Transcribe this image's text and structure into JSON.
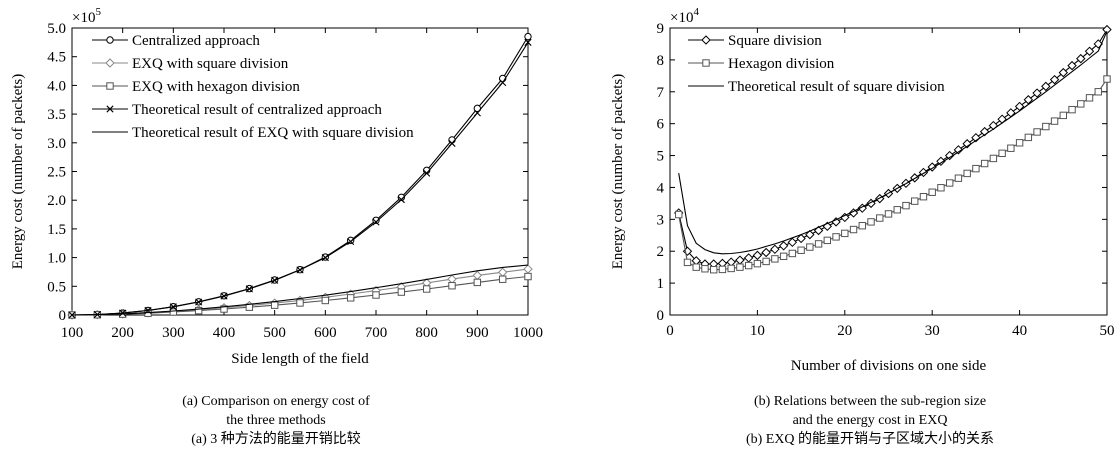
{
  "chart_data": [
    {
      "type": "line",
      "xlabel": "Side length of the field",
      "ylabel": "Energy cost (number of packets)",
      "multiplier": "×10",
      "multiplier_exp": "5",
      "xlim": [
        100,
        1000
      ],
      "ylim": [
        0,
        500000
      ],
      "xticks": [
        100,
        200,
        300,
        400,
        500,
        600,
        700,
        800,
        900,
        1000
      ],
      "yticks": [
        0,
        50000,
        100000,
        150000,
        200000,
        250000,
        300000,
        350000,
        400000,
        450000,
        500000
      ],
      "xtick_labels": [
        "100",
        "200",
        "300",
        "400",
        "500",
        "600",
        "700",
        "800",
        "900",
        "1000"
      ],
      "ytick_labels": [
        "0",
        "0.5",
        "1.0",
        "1.5",
        "2.0",
        "2.5",
        "3.0",
        "3.5",
        "4.0",
        "4.5",
        "5.0"
      ],
      "legend_position": "top-left",
      "caption": [
        "(a) Comparison on energy cost of",
        "the three methods",
        "(a) 3 种方法的能量开销比较"
      ],
      "series": [
        {
          "name": "Centralized approach",
          "marker": "circle",
          "color": "#000000",
          "x": [
            100,
            150,
            200,
            250,
            300,
            350,
            400,
            450,
            500,
            550,
            600,
            650,
            700,
            750,
            800,
            850,
            900,
            950,
            1000
          ],
          "y": [
            0,
            900,
            3500,
            8000,
            14500,
            23000,
            33500,
            46000,
            61000,
            79000,
            101000,
            130000,
            165000,
            205000,
            252000,
            305000,
            360000,
            412000,
            485000
          ]
        },
        {
          "name": "EXQ with square division",
          "marker": "diamond",
          "color": "#888888",
          "x": [
            100,
            150,
            200,
            250,
            300,
            350,
            400,
            450,
            500,
            550,
            600,
            650,
            700,
            750,
            800,
            850,
            900,
            950,
            1000
          ],
          "y": [
            0,
            500,
            1800,
            3800,
            6300,
            9200,
            12600,
            16500,
            20800,
            25500,
            30800,
            36500,
            42500,
            49000,
            56000,
            62500,
            69000,
            74500,
            80000
          ]
        },
        {
          "name": "EXQ with hexagon division",
          "marker": "square",
          "color": "#555555",
          "x": [
            100,
            150,
            200,
            250,
            300,
            350,
            400,
            450,
            500,
            550,
            600,
            650,
            700,
            750,
            800,
            850,
            900,
            950,
            1000
          ],
          "y": [
            0,
            400,
            1500,
            3100,
            5200,
            7600,
            10400,
            13600,
            17100,
            21000,
            25300,
            29900,
            34800,
            39900,
            45300,
            51000,
            56800,
            62300,
            67000
          ]
        },
        {
          "name": "Theoretical result of centralized approach",
          "marker": "x",
          "color": "#000000",
          "x": [
            100,
            150,
            200,
            250,
            300,
            350,
            400,
            450,
            500,
            550,
            600,
            650,
            700,
            750,
            800,
            850,
            900,
            950,
            1000
          ],
          "y": [
            0,
            850,
            3400,
            7800,
            14200,
            22600,
            33000,
            45500,
            60500,
            78500,
            100000,
            128000,
            162000,
            201000,
            247000,
            299000,
            352000,
            405000,
            475000
          ]
        },
        {
          "name": "Theoretical result of EXQ with square division",
          "marker": "none",
          "color": "#000000",
          "x": [
            100,
            150,
            200,
            250,
            300,
            350,
            400,
            450,
            500,
            550,
            600,
            650,
            700,
            750,
            800,
            850,
            900,
            950,
            1000
          ],
          "y": [
            0,
            550,
            2000,
            4200,
            7000,
            10300,
            14200,
            18600,
            23400,
            28700,
            34500,
            40800,
            47500,
            54600,
            62000,
            69600,
            77000,
            83000,
            87000
          ]
        }
      ]
    },
    {
      "type": "line",
      "xlabel": "Number of divisions on one side",
      "ylabel": "Energy cost (number of packets)",
      "multiplier": "×10",
      "multiplier_exp": "4",
      "xlim": [
        0,
        50
      ],
      "ylim": [
        0,
        90000
      ],
      "xticks": [
        0,
        10,
        20,
        30,
        40,
        50
      ],
      "yticks": [
        0,
        10000,
        20000,
        30000,
        40000,
        50000,
        60000,
        70000,
        80000,
        90000
      ],
      "xtick_labels": [
        "0",
        "10",
        "20",
        "30",
        "40",
        "50"
      ],
      "ytick_labels": [
        "0",
        "1",
        "2",
        "3",
        "4",
        "5",
        "6",
        "7",
        "8",
        "9"
      ],
      "legend_position": "top-left",
      "caption": [
        "(b) Relations between the sub-region size",
        "and the energy cost in EXQ",
        "(b) EXQ 的能量开销与子区域大小的关系"
      ],
      "series": [
        {
          "name": "Square division",
          "marker": "diamond",
          "color": "#000000",
          "x": [
            1,
            2,
            3,
            4,
            5,
            6,
            7,
            8,
            9,
            10,
            11,
            12,
            13,
            14,
            15,
            16,
            17,
            18,
            19,
            20,
            21,
            22,
            23,
            24,
            25,
            26,
            27,
            28,
            29,
            30,
            31,
            32,
            33,
            34,
            35,
            36,
            37,
            38,
            39,
            40,
            41,
            42,
            43,
            44,
            45,
            46,
            47,
            48,
            49,
            50
          ],
          "y": [
            32000,
            20000,
            17000,
            16000,
            16000,
            16200,
            16600,
            17200,
            17900,
            18700,
            19600,
            20600,
            21700,
            22800,
            24000,
            25200,
            26500,
            27800,
            29200,
            30600,
            32000,
            33500,
            35000,
            36500,
            38100,
            39700,
            41300,
            43000,
            44700,
            46400,
            48200,
            50000,
            51800,
            53700,
            55600,
            57500,
            59400,
            61400,
            63400,
            65400,
            67500,
            69600,
            71700,
            73800,
            76000,
            78200,
            80400,
            82700,
            85000,
            89500
          ]
        },
        {
          "name": "Hexagon division",
          "marker": "square",
          "color": "#555555",
          "x": [
            1,
            2,
            3,
            4,
            5,
            6,
            7,
            8,
            9,
            10,
            11,
            12,
            13,
            14,
            15,
            16,
            17,
            18,
            19,
            20,
            21,
            22,
            23,
            24,
            25,
            26,
            27,
            28,
            29,
            30,
            31,
            32,
            33,
            34,
            35,
            36,
            37,
            38,
            39,
            40,
            41,
            42,
            43,
            44,
            45,
            46,
            47,
            48,
            49,
            50
          ],
          "y": [
            31500,
            16500,
            15000,
            14500,
            14200,
            14300,
            14600,
            15000,
            15500,
            16100,
            16800,
            17600,
            18400,
            19300,
            20300,
            21300,
            22300,
            23400,
            24500,
            25600,
            26800,
            28000,
            29200,
            30400,
            31700,
            33000,
            34300,
            35700,
            37100,
            38500,
            39900,
            41400,
            42900,
            44400,
            45900,
            47500,
            49100,
            50700,
            52300,
            54000,
            55700,
            57400,
            59100,
            60800,
            62600,
            64400,
            66200,
            68100,
            70000,
            74000
          ]
        },
        {
          "name": "Theoretical result of square division",
          "marker": "none",
          "color": "#000000",
          "x": [
            1,
            2,
            3,
            4,
            5,
            6,
            7,
            8,
            9,
            10,
            11,
            12,
            13,
            14,
            15,
            16,
            17,
            18,
            19,
            20,
            21,
            22,
            23,
            24,
            25,
            26,
            27,
            28,
            29,
            30,
            31,
            32,
            33,
            34,
            35,
            36,
            37,
            38,
            39,
            40,
            41,
            42,
            43,
            44,
            45,
            46,
            47,
            48,
            49,
            50
          ],
          "y": [
            44500,
            28000,
            22500,
            20500,
            19500,
            19200,
            19300,
            19600,
            20100,
            20700,
            21500,
            22300,
            23200,
            24200,
            25200,
            26300,
            27500,
            28700,
            29900,
            31200,
            32500,
            33900,
            35300,
            36700,
            38200,
            39700,
            41200,
            42800,
            44400,
            46000,
            47700,
            49400,
            51100,
            52900,
            54700,
            56500,
            58300,
            60200,
            62100,
            64000,
            66000,
            68000,
            70000,
            72100,
            74200,
            76300,
            78400,
            80600,
            82800,
            89000
          ]
        }
      ]
    }
  ]
}
